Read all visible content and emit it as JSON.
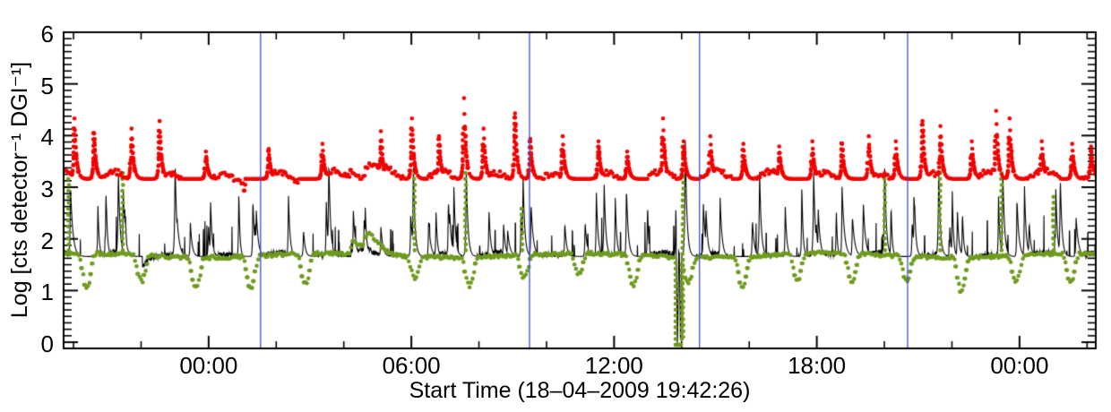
{
  "figure": {
    "background": "#ffffff"
  },
  "chart_data": {
    "type": "scatter+line time-series light curve",
    "title": "",
    "xlabel": "Start Time (18–04–2009 19:42:26)",
    "ylabel": "Log [cts detector⁻¹ DGI⁻¹]",
    "grid": false,
    "legend": "none",
    "x_axis": {
      "start_time": "18-04-2009 19:42:26",
      "span_hours": 30.55,
      "major_ticks": [
        {
          "label": "00:00",
          "hours": 4.293
        },
        {
          "label": "06:00",
          "hours": 10.293
        },
        {
          "label": "12:00",
          "hours": 16.293
        },
        {
          "label": "18:00",
          "hours": 22.293
        },
        {
          "label": "00:00",
          "hours": 28.293
        }
      ],
      "minor_tick_anchor_hours": 0.293,
      "minor_tick_every_hours": 2
    },
    "y_axis": {
      "range": [
        -0.12,
        6.0
      ],
      "major_ticks": [
        0,
        1,
        2,
        3,
        4,
        5,
        6
      ],
      "minor_step": 0.125
    },
    "vertical_lines": {
      "color": "#3d4ed0",
      "hours_from_start": [
        5.83,
        13.79,
        18.82,
        24.98
      ],
      "clock_times_19_04_2009": [
        "01:32",
        "09:30",
        "14:31",
        "20:41"
      ]
    },
    "series": [
      {
        "name": "red dotted series (upper band)",
        "style": "dots",
        "color": "#f20000",
        "baseline": 3.16,
        "orbital_modulation_amp": 0.13,
        "spikes": [
          [
            0.32,
            4.35
          ],
          [
            0.9,
            4.05
          ],
          [
            2.01,
            4.15
          ],
          [
            2.84,
            4.3
          ],
          [
            4.21,
            3.7
          ],
          [
            6.07,
            3.75
          ],
          [
            7.66,
            3.85
          ],
          [
            9.39,
            4.1
          ],
          [
            10.31,
            4.35
          ],
          [
            11.11,
            4.0
          ],
          [
            11.85,
            4.75
          ],
          [
            12.43,
            4.15
          ],
          [
            13.36,
            4.45
          ],
          [
            13.81,
            3.95
          ],
          [
            14.77,
            4.0
          ],
          [
            15.83,
            3.9
          ],
          [
            16.68,
            3.7
          ],
          [
            17.74,
            4.35
          ],
          [
            18.35,
            3.9
          ],
          [
            19.14,
            4.0
          ],
          [
            20.12,
            3.85
          ],
          [
            21.18,
            3.8
          ],
          [
            22.16,
            3.9
          ],
          [
            23.04,
            3.85
          ],
          [
            23.83,
            4.0
          ],
          [
            24.63,
            3.9
          ],
          [
            25.42,
            4.3
          ],
          [
            25.95,
            4.2
          ],
          [
            26.88,
            3.9
          ],
          [
            27.6,
            4.5
          ],
          [
            28.0,
            4.35
          ],
          [
            28.95,
            3.9
          ],
          [
            29.85,
            3.85
          ],
          [
            30.41,
            3.8
          ]
        ],
        "particle_bump": {
          "t_start": 8.4,
          "t_peak": 8.75,
          "t_end": 9.9,
          "amplitude": 0.6
        }
      },
      {
        "name": "green dotted series (lower band with orbital dips)",
        "style": "dots",
        "color": "#6f9b1e",
        "baseline": 1.68,
        "orbit_dips": {
          "period_hours": 1.618,
          "first_center_hours": 0.69,
          "half_width_hours": 0.26,
          "depth_range": [
            0.4,
            0.7
          ]
        },
        "updrafts": [
          [
            0.15,
            3.35
          ],
          [
            1.75,
            3.35
          ],
          [
            10.39,
            3.3
          ],
          [
            11.9,
            3.35
          ],
          [
            13.57,
            2.6
          ],
          [
            18.33,
            3.85,
            0.1
          ],
          [
            24.31,
            3.2
          ],
          [
            25.95,
            3.4
          ],
          [
            27.76,
            3.35
          ],
          [
            29.3,
            2.9
          ]
        ],
        "zero_event": {
          "t_start": 18.12,
          "t_end": 18.3,
          "level": -0.05
        },
        "particle_bump": {
          "t_start": 8.45,
          "t_peak": 8.75,
          "t_end": 10.0,
          "amplitude": 0.72
        }
      },
      {
        "name": "black line series (spiky background curve)",
        "style": "line",
        "color": "#000000",
        "baseline": 1.66,
        "big_spikes": [
          [
            1.62,
            3.35
          ],
          [
            3.3,
            3.5
          ],
          [
            7.85,
            3.55
          ],
          [
            10.35,
            3.45
          ],
          [
            11.92,
            3.3
          ],
          [
            13.6,
            3.2
          ],
          [
            16.0,
            3.05
          ],
          [
            18.4,
            3.9
          ],
          [
            20.6,
            3.3
          ],
          [
            22.2,
            3.3
          ],
          [
            24.3,
            3.5
          ],
          [
            25.9,
            3.35
          ],
          [
            27.8,
            3.3
          ],
          [
            29.5,
            3.2
          ]
        ],
        "deep_dips": [
          [
            18.17,
            -0.12
          ],
          [
            18.26,
            -0.12
          ]
        ],
        "particle_bump": {
          "t_start": 8.45,
          "t_peak": 8.8,
          "t_end": 9.6,
          "amplitude": 0.4
        }
      }
    ],
    "seed": 7
  }
}
